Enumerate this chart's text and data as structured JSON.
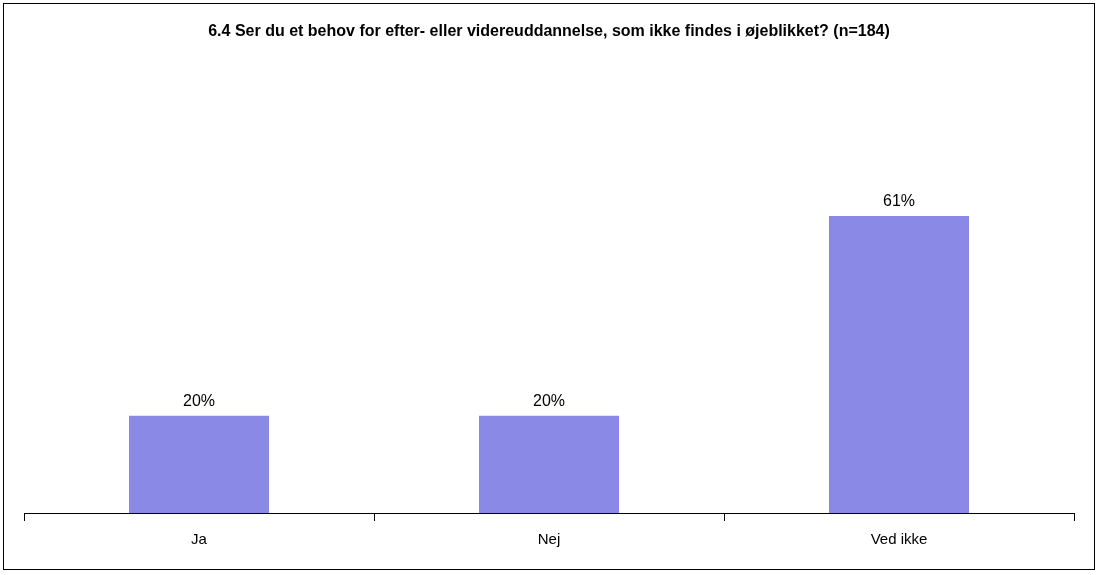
{
  "chart_data": {
    "type": "bar",
    "title": "6.4 Ser du et behov for efter- eller videreuddannelse, som ikke findes i øjeblikket? (n=184)",
    "categories": [
      "Ja",
      "Nej",
      "Ved ikke"
    ],
    "values": [
      20,
      20,
      61
    ],
    "color": "#8a8ae6",
    "value_labels": [
      "20%",
      "20%",
      "61%"
    ],
    "tick_labels": "x",
    "grid": false,
    "legend": false
  }
}
